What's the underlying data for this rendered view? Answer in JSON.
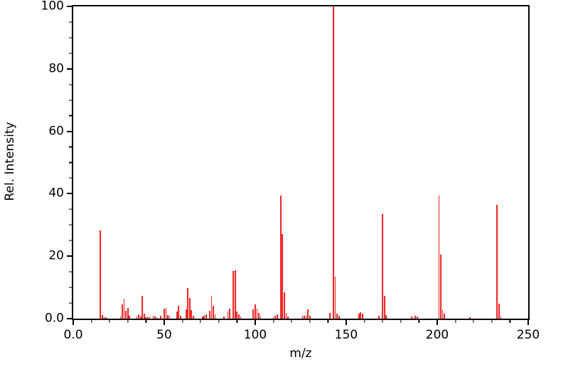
{
  "figure": {
    "background": "#ffffff"
  },
  "chart_data": {
    "type": "bar",
    "subtype": "mass-spectrum",
    "title": "",
    "xlabel": "m/z",
    "ylabel": "Rel. Intensity",
    "xlim": [
      0,
      250
    ],
    "ylim": [
      0,
      100
    ],
    "grid": false,
    "legend": false,
    "peak_color": "#ee2020",
    "axis_color": "#000000",
    "x_major_ticks": [
      0,
      50,
      100,
      150,
      200,
      250
    ],
    "x_tick_labels": [
      "0.0",
      "50",
      "100",
      "150",
      "200",
      "250"
    ],
    "x_minor_step": 10,
    "y_major_ticks": [
      0,
      20,
      40,
      60,
      80,
      100
    ],
    "y_tick_labels": [
      "0.0",
      "20",
      "40",
      "60",
      "80",
      "100"
    ],
    "y_minor_step": 5,
    "peaks": [
      [
        15,
        28.2
      ],
      [
        16,
        1.1
      ],
      [
        17,
        0.4
      ],
      [
        18,
        0.5
      ],
      [
        26,
        0.7
      ],
      [
        27,
        4.6
      ],
      [
        28,
        6.3
      ],
      [
        29,
        2.5
      ],
      [
        30,
        3.5
      ],
      [
        31,
        1.0
      ],
      [
        35,
        0.6
      ],
      [
        36,
        1.3
      ],
      [
        37,
        0.8
      ],
      [
        38,
        7.2
      ],
      [
        39,
        1.5
      ],
      [
        40,
        0.5
      ],
      [
        41,
        0.5
      ],
      [
        42,
        0.6
      ],
      [
        44,
        0.9
      ],
      [
        45,
        0.6
      ],
      [
        46,
        0.3
      ],
      [
        48,
        1.0
      ],
      [
        50,
        3.3
      ],
      [
        51,
        3.4
      ],
      [
        52,
        1.1
      ],
      [
        53,
        0.9
      ],
      [
        57,
        2.2
      ],
      [
        58,
        4.0
      ],
      [
        59,
        1.0
      ],
      [
        62,
        2.9
      ],
      [
        63,
        9.9
      ],
      [
        64,
        6.6
      ],
      [
        65,
        2.8
      ],
      [
        66,
        0.9
      ],
      [
        71,
        0.6
      ],
      [
        72,
        0.9
      ],
      [
        73,
        1.4
      ],
      [
        75,
        2.4
      ],
      [
        76,
        7.4
      ],
      [
        77,
        4.2
      ],
      [
        78,
        1.3
      ],
      [
        83,
        0.6
      ],
      [
        85,
        2.3
      ],
      [
        86,
        3.2
      ],
      [
        88,
        15.2
      ],
      [
        89,
        15.6
      ],
      [
        90,
        2.2
      ],
      [
        91,
        1.4
      ],
      [
        92,
        0.6
      ],
      [
        99,
        2.9
      ],
      [
        100,
        4.6
      ],
      [
        101,
        3.3
      ],
      [
        102,
        1.8
      ],
      [
        103,
        0.8
      ],
      [
        110,
        0.4
      ],
      [
        111,
        1.0
      ],
      [
        112,
        1.3
      ],
      [
        114,
        39.4
      ],
      [
        115,
        27.0
      ],
      [
        116,
        8.4
      ],
      [
        117,
        1.9
      ],
      [
        118,
        0.6
      ],
      [
        126,
        0.9
      ],
      [
        127,
        1.0
      ],
      [
        128,
        1.1
      ],
      [
        129,
        3.0
      ],
      [
        130,
        1.0
      ],
      [
        141,
        1.9
      ],
      [
        143,
        100.0
      ],
      [
        144,
        13.5
      ],
      [
        145,
        1.5
      ],
      [
        146,
        1.0
      ],
      [
        157,
        1.5
      ],
      [
        158,
        2.1
      ],
      [
        159,
        1.5
      ],
      [
        168,
        1.0
      ],
      [
        170,
        33.5
      ],
      [
        171,
        7.4
      ],
      [
        172,
        1.2
      ],
      [
        186,
        0.7
      ],
      [
        188,
        1.0
      ],
      [
        189,
        0.6
      ],
      [
        201,
        39.3
      ],
      [
        202,
        20.6
      ],
      [
        203,
        2.8
      ],
      [
        204,
        1.5
      ],
      [
        218,
        0.5
      ],
      [
        233,
        36.4
      ],
      [
        234,
        4.9
      ],
      [
        235,
        0.6
      ]
    ]
  }
}
